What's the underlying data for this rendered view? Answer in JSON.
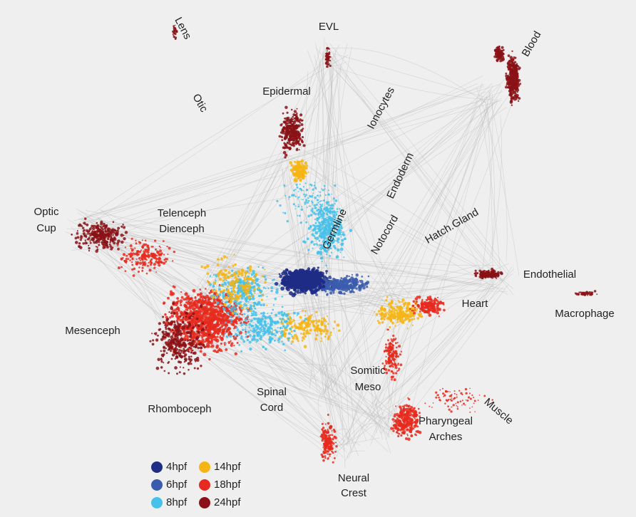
{
  "labels": {
    "lens": "Lens",
    "evl": "EVL",
    "blood": "Blood",
    "epidermal": "Epidermal",
    "otic": "Otic",
    "ionocytes": "Ionocytes",
    "endoderm": "Endoderm",
    "optic_cup": [
      "Optic",
      "Cup"
    ],
    "telenceph": [
      "Telenceph",
      "Dienceph"
    ],
    "germline": "Germline",
    "notocord": "Notocord",
    "hatch_gland": "Hatch.Gland",
    "endothelial": "Endothelial",
    "heart": "Heart",
    "macrophage": "Macrophage",
    "mesenceph": "Mesenceph",
    "somitic": [
      "Somitic",
      "Meso"
    ],
    "spinal": [
      "Spinal",
      "Cord"
    ],
    "rhomboceph": "Rhomboceph",
    "muscle": "Muscle",
    "pharyngeal": [
      "Pharyngeal",
      "Arches"
    ],
    "neural_crest": [
      "Neural",
      "Crest"
    ]
  },
  "legend": {
    "items": [
      {
        "label": "4hpf",
        "color": "#1f2c86"
      },
      {
        "label": "6hpf",
        "color": "#3b5cae"
      },
      {
        "label": "8hpf",
        "color": "#45c1ea"
      },
      {
        "label": "14hpf",
        "color": "#f6b514"
      },
      {
        "label": "18hpf",
        "color": "#e62a1f"
      },
      {
        "label": "24hpf",
        "color": "#8a1216"
      }
    ]
  }
}
